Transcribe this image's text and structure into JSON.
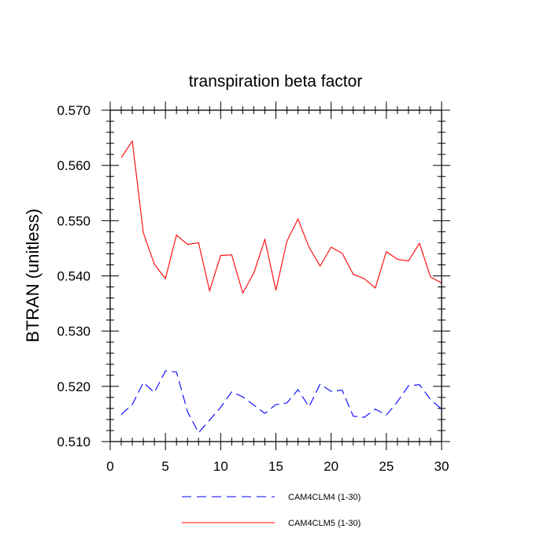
{
  "chart_data": {
    "type": "line",
    "title": "transpiration beta factor",
    "xlabel": "",
    "ylabel": "BTRAN  (unitless)",
    "xlim": [
      0,
      30
    ],
    "ylim": [
      0.51,
      0.57
    ],
    "x_ticks": [
      0,
      5,
      10,
      15,
      20,
      25,
      30
    ],
    "y_ticks": [
      0.51,
      0.52,
      0.53,
      0.54,
      0.55,
      0.56,
      0.57
    ],
    "x_tick_labels": [
      "0",
      "5",
      "10",
      "15",
      "20",
      "25",
      "30"
    ],
    "y_tick_labels": [
      "0.510",
      "0.520",
      "0.530",
      "0.540",
      "0.550",
      "0.560",
      "0.570"
    ],
    "grid": false,
    "legend_position": "bottom-center",
    "x": [
      1,
      2,
      3,
      4,
      5,
      6,
      7,
      8,
      9,
      10,
      11,
      12,
      13,
      14,
      15,
      16,
      17,
      18,
      19,
      20,
      21,
      22,
      23,
      24,
      25,
      26,
      27,
      28,
      29,
      30
    ],
    "series": [
      {
        "name": "CAM4CLM4 (1-30)",
        "color": "#0000ff",
        "dash": "dashed",
        "values": [
          0.5149,
          0.5167,
          0.5207,
          0.5189,
          0.5228,
          0.5226,
          0.5154,
          0.5116,
          0.5139,
          0.5162,
          0.519,
          0.5181,
          0.5166,
          0.5151,
          0.5167,
          0.517,
          0.5194,
          0.5163,
          0.5204,
          0.5191,
          0.5193,
          0.5146,
          0.5144,
          0.5159,
          0.5148,
          0.5172,
          0.5201,
          0.5203,
          0.5176,
          0.5159
        ]
      },
      {
        "name": "CAM4CLM5 (1-30)",
        "color": "#ff0000",
        "dash": "solid",
        "values": [
          0.5614,
          0.5644,
          0.5478,
          0.5421,
          0.5395,
          0.5474,
          0.5457,
          0.546,
          0.5373,
          0.5437,
          0.5438,
          0.5369,
          0.5405,
          0.5466,
          0.5374,
          0.5463,
          0.5503,
          0.5452,
          0.5418,
          0.5452,
          0.5441,
          0.5403,
          0.5395,
          0.5378,
          0.5444,
          0.543,
          0.5427,
          0.5459,
          0.5398,
          0.5387
        ]
      }
    ]
  }
}
